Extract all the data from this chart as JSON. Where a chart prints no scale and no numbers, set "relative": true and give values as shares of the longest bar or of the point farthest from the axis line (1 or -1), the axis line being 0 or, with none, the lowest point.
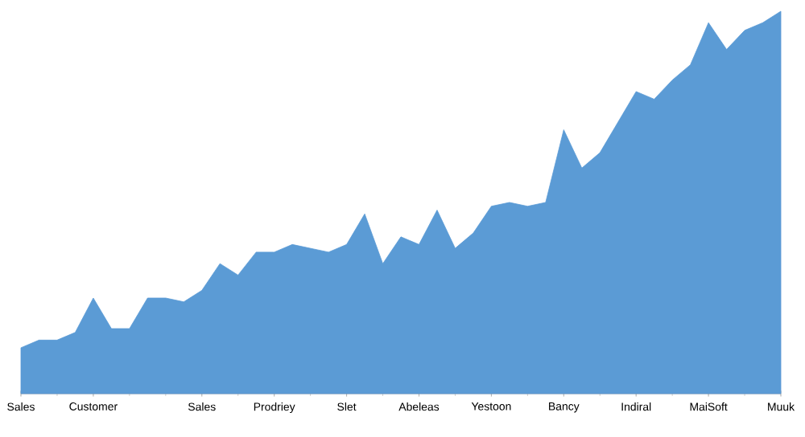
{
  "chart_data": {
    "type": "area",
    "relative": true,
    "color": "#5b9bd5",
    "categories": [
      "Sales",
      null,
      null,
      null,
      "Customer",
      null,
      null,
      null,
      null,
      null,
      "Sales",
      null,
      null,
      null,
      "Prodriey",
      null,
      null,
      null,
      "Slet",
      null,
      null,
      null,
      "Abeleas",
      null,
      null,
      null,
      "Yestoon",
      null,
      null,
      null,
      "Bancy",
      null,
      null,
      null,
      "Indiral",
      null,
      null,
      null,
      "MaiSoft",
      null,
      null,
      null,
      "Muuk"
    ],
    "values": [
      0.12,
      0.14,
      0.14,
      0.16,
      0.25,
      0.17,
      0.17,
      0.25,
      0.25,
      0.24,
      0.27,
      0.34,
      0.31,
      0.37,
      0.37,
      0.39,
      0.38,
      0.37,
      0.39,
      0.47,
      0.34,
      0.41,
      0.39,
      0.48,
      0.38,
      0.42,
      0.49,
      0.5,
      0.49,
      0.5,
      0.69,
      0.59,
      0.63,
      0.71,
      0.79,
      0.77,
      0.82,
      0.86,
      0.97,
      0.9,
      0.95,
      0.97,
      1
    ]
  }
}
